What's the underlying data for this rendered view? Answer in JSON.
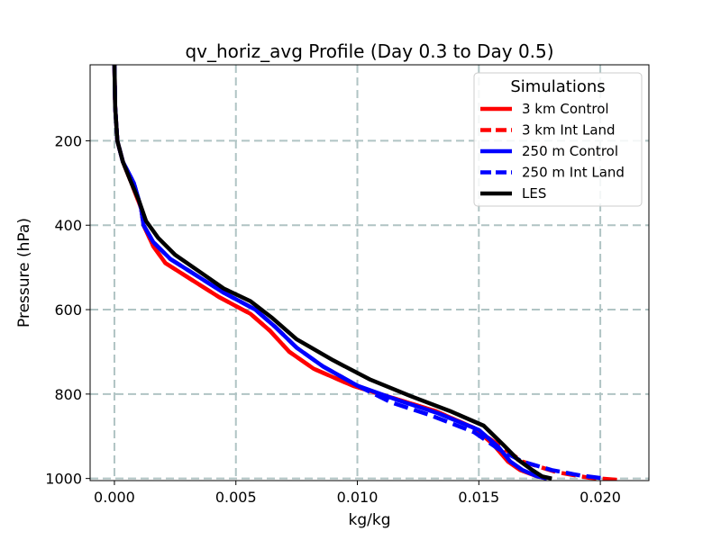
{
  "chart_data": {
    "type": "line",
    "title": "qv_horiz_avg Profile (Day 0.3 to Day 0.5)",
    "xlabel": "kg/kg",
    "ylabel": "Pressure (hPa)",
    "xlim": [
      -0.001,
      0.022
    ],
    "ylim": [
      1005,
      20
    ],
    "y_inverted": true,
    "grid": true,
    "x_ticks": [
      0.0,
      0.005,
      0.01,
      0.015,
      0.02
    ],
    "x_tick_labels": [
      "0.000",
      "0.005",
      "0.010",
      "0.015",
      "0.020"
    ],
    "y_ticks": [
      200,
      400,
      600,
      800,
      1000
    ],
    "y_tick_labels": [
      "200",
      "400",
      "600",
      "800",
      "1000"
    ],
    "legend": {
      "title": "Simulations",
      "position": "top-right"
    },
    "series": [
      {
        "name": "3 km Control",
        "color": "#ff0000",
        "dash": "solid",
        "x": [
          0.0,
          3e-05,
          0.00012,
          0.00035,
          0.0007,
          0.0011,
          0.0012,
          0.0016,
          0.0021,
          0.0032,
          0.0043,
          0.0056,
          0.0064,
          0.0072,
          0.0082,
          0.0098,
          0.0115,
          0.0132,
          0.0148,
          0.0156,
          0.0162,
          0.0167,
          0.0174,
          0.0178
        ],
        "y": [
          20,
          120,
          200,
          250,
          300,
          360,
          400,
          450,
          490,
          530,
          570,
          610,
          650,
          700,
          740,
          780,
          810,
          840,
          880,
          920,
          960,
          980,
          995,
          1000
        ]
      },
      {
        "name": "3 km Int Land",
        "color": "#ff0000",
        "dash": "dashed",
        "x": [
          0.0,
          3e-05,
          0.00012,
          0.00035,
          0.0007,
          0.0011,
          0.0012,
          0.0016,
          0.0021,
          0.0032,
          0.0043,
          0.0056,
          0.0064,
          0.0072,
          0.0082,
          0.0098,
          0.0115,
          0.0132,
          0.0148,
          0.0158,
          0.0168,
          0.0182,
          0.0195,
          0.0207
        ],
        "y": [
          20,
          120,
          200,
          250,
          300,
          360,
          400,
          450,
          490,
          530,
          570,
          610,
          650,
          700,
          740,
          780,
          810,
          840,
          880,
          920,
          960,
          985,
          998,
          1003
        ]
      },
      {
        "name": "250 m Control",
        "color": "#0000ff",
        "dash": "solid",
        "x": [
          0.0,
          3e-05,
          0.00012,
          0.00035,
          0.0008,
          0.0011,
          0.0012,
          0.0016,
          0.0023,
          0.0034,
          0.0045,
          0.0058,
          0.0066,
          0.0075,
          0.0086,
          0.01,
          0.0117,
          0.0133,
          0.015,
          0.0158,
          0.0163,
          0.0168,
          0.0174,
          0.0178
        ],
        "y": [
          20,
          120,
          200,
          250,
          300,
          360,
          400,
          440,
          480,
          520,
          560,
          600,
          640,
          690,
          735,
          780,
          815,
          845,
          885,
          925,
          960,
          980,
          995,
          1000
        ]
      },
      {
        "name": "250 m Int Land",
        "color": "#0000ff",
        "dash": "dashed",
        "x": [
          0.0,
          3e-05,
          0.00012,
          0.00035,
          0.0008,
          0.0011,
          0.0012,
          0.0016,
          0.0023,
          0.0034,
          0.0045,
          0.0058,
          0.0066,
          0.0075,
          0.0086,
          0.01,
          0.0114,
          0.013,
          0.0148,
          0.0158,
          0.0168,
          0.018,
          0.0192,
          0.0202
        ],
        "y": [
          20,
          120,
          200,
          250,
          300,
          360,
          400,
          440,
          480,
          520,
          560,
          600,
          640,
          690,
          735,
          780,
          820,
          850,
          890,
          930,
          960,
          980,
          993,
          1000
        ]
      },
      {
        "name": "LES",
        "color": "#000000",
        "dash": "solid",
        "x": [
          0.0,
          3e-05,
          0.00012,
          0.00035,
          0.0007,
          0.001,
          0.0013,
          0.0018,
          0.0025,
          0.0035,
          0.0045,
          0.0056,
          0.0065,
          0.0075,
          0.009,
          0.0105,
          0.0122,
          0.0138,
          0.0152,
          0.016,
          0.0166,
          0.0172,
          0.0176,
          0.018
        ],
        "y": [
          20,
          120,
          200,
          250,
          300,
          340,
          390,
          430,
          470,
          510,
          550,
          580,
          620,
          670,
          720,
          765,
          805,
          840,
          875,
          920,
          955,
          980,
          995,
          1000
        ]
      }
    ]
  }
}
